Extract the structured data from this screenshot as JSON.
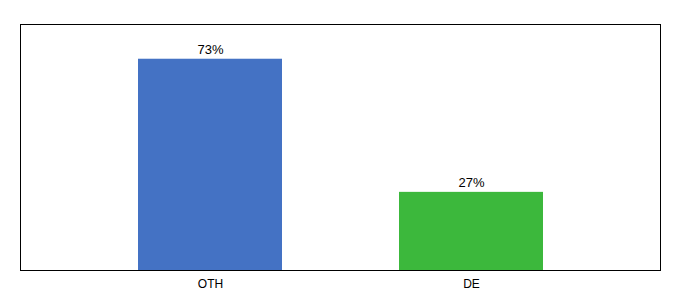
{
  "chart_data": {
    "type": "bar",
    "categories": [
      "OTH",
      "DE"
    ],
    "values": [
      73,
      27
    ],
    "value_labels": [
      "73%",
      "27%"
    ],
    "colors": [
      "#4472c4",
      "#3cb83c"
    ],
    "ylim": [
      0,
      85
    ],
    "data_labels": true,
    "tick_labels": "x"
  }
}
